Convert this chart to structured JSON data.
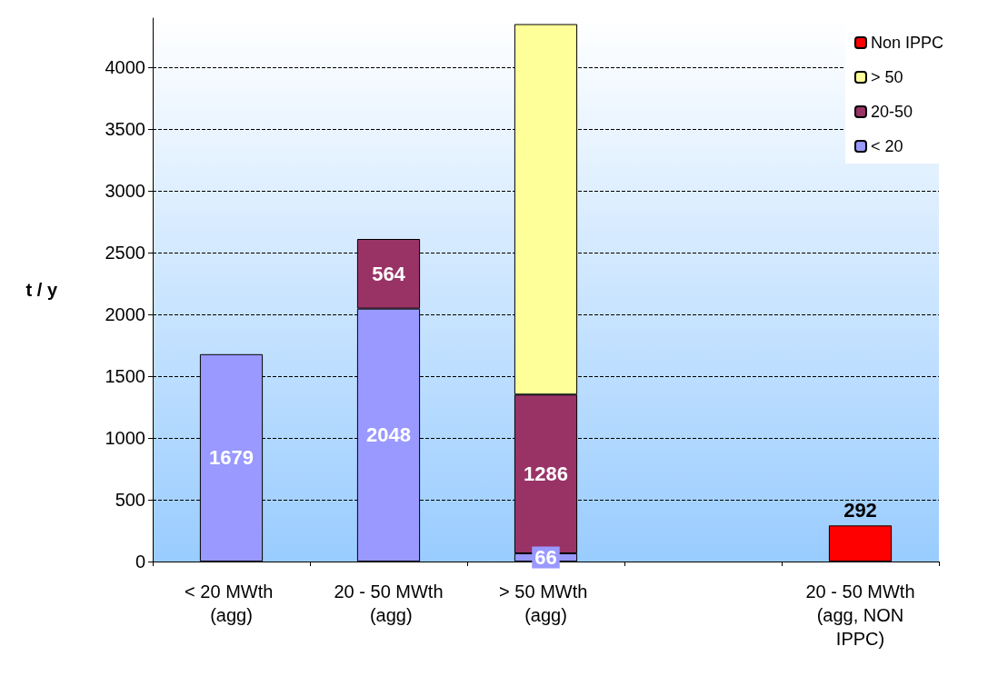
{
  "chart_data": {
    "type": "bar",
    "stacked": true,
    "ylabel": "t / y",
    "categories": [
      "< 20 MWth (agg)",
      "20 - 50 MWth (agg)",
      "> 50 MWth (agg)",
      null,
      "20 - 50 MWth (agg, NON IPPC)"
    ],
    "series": [
      {
        "name": "< 20",
        "color": "#9999ff",
        "values": [
          1679,
          2048,
          66,
          null,
          null
        ],
        "value_labels": [
          "1679",
          "2048",
          "66",
          null,
          null
        ]
      },
      {
        "name": "20-50",
        "color": "#993366",
        "values": [
          null,
          564,
          1286,
          null,
          null
        ],
        "value_labels": [
          null,
          "564",
          "1286",
          null,
          null
        ]
      },
      {
        "name": "> 50",
        "color": "#ffff99",
        "values": [
          null,
          null,
          3000,
          null,
          null
        ],
        "value_labels": [
          null,
          null,
          null,
          null,
          null
        ]
      },
      {
        "name": "Non IPPC",
        "color": "#ff0000",
        "values": [
          null,
          null,
          null,
          null,
          292
        ],
        "value_labels": [
          null,
          null,
          null,
          null,
          "292"
        ]
      }
    ],
    "ylim": [
      0,
      4400
    ],
    "yticks": [
      0,
      500,
      1000,
      1500,
      2000,
      2500,
      3000,
      3500,
      4000
    ],
    "grid": "y",
    "legend": "top right"
  }
}
